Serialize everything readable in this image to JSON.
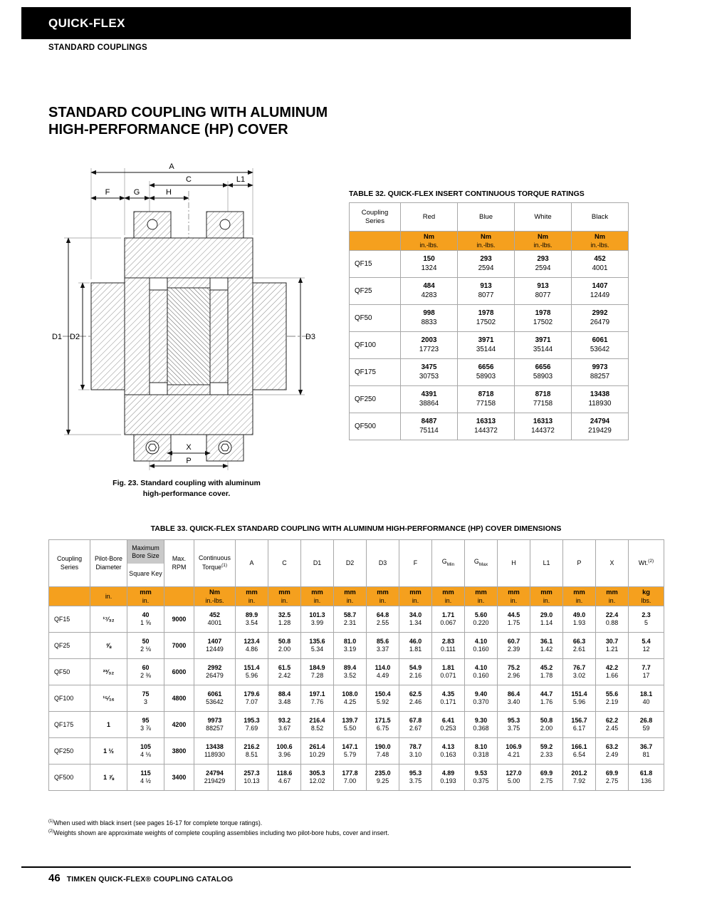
{
  "theme": {
    "accent_orange": "#F5A01E",
    "bore_header_gray": "#C9C9C9",
    "header_bar_black": "#000000"
  },
  "page": {
    "brand": "QUICK-FLEX",
    "section": "STANDARD COUPLINGS",
    "title_line1": "STANDARD COUPLING WITH ALUMINUM",
    "title_line2": "HIGH-PERFORMANCE (HP) COVER",
    "footer_page_number": "46",
    "footer_text": "TIMKEN QUICK-FLEX® COUPLING CATALOG"
  },
  "figure": {
    "caption_line1": "Fig. 23. Standard coupling with aluminum",
    "caption_line2": "high-performance cover.",
    "labels": {
      "a": "A",
      "c": "C",
      "l1": "L1",
      "f": "F",
      "g": "G",
      "h": "H",
      "d1": "D1",
      "d2": "D2",
      "d3": "D3",
      "x": "X",
      "p": "P"
    }
  },
  "table32": {
    "title": "TABLE 32. QUICK-FLEX INSERT CONTINUOUS TORQUE RATINGS",
    "series_header": [
      "Coupling",
      "Series"
    ],
    "colors": [
      "Red",
      "Blue",
      "White",
      "Black"
    ],
    "unit_primary": "Nm",
    "unit_secondary": "in.-lbs.",
    "rows": [
      {
        "series": "QF15",
        "values": [
          [
            "150",
            "1324"
          ],
          [
            "293",
            "2594"
          ],
          [
            "293",
            "2594"
          ],
          [
            "452",
            "4001"
          ]
        ]
      },
      {
        "series": "QF25",
        "values": [
          [
            "484",
            "4283"
          ],
          [
            "913",
            "8077"
          ],
          [
            "913",
            "8077"
          ],
          [
            "1407",
            "12449"
          ]
        ]
      },
      {
        "series": "QF50",
        "values": [
          [
            "998",
            "8833"
          ],
          [
            "1978",
            "17502"
          ],
          [
            "1978",
            "17502"
          ],
          [
            "2992",
            "26479"
          ]
        ]
      },
      {
        "series": "QF100",
        "values": [
          [
            "2003",
            "17723"
          ],
          [
            "3971",
            "35144"
          ],
          [
            "3971",
            "35144"
          ],
          [
            "6061",
            "53642"
          ]
        ]
      },
      {
        "series": "QF175",
        "values": [
          [
            "3475",
            "30753"
          ],
          [
            "6656",
            "58903"
          ],
          [
            "6656",
            "58903"
          ],
          [
            "9973",
            "88257"
          ]
        ]
      },
      {
        "series": "QF250",
        "values": [
          [
            "4391",
            "38864"
          ],
          [
            "8718",
            "77158"
          ],
          [
            "8718",
            "77158"
          ],
          [
            "13438",
            "118930"
          ]
        ]
      },
      {
        "series": "QF500",
        "values": [
          [
            "8487",
            "75114"
          ],
          [
            "16313",
            "144372"
          ],
          [
            "16313",
            "144372"
          ],
          [
            "24794",
            "219429"
          ]
        ]
      }
    ]
  },
  "table33": {
    "title": "TABLE 33. QUICK-FLEX STANDARD COUPLING WITH ALUMINUM HIGH-PERFORMANCE (HP) COVER DIMENSIONS",
    "headers": {
      "series": "Coupling Series",
      "pilot": "Pilot-Bore Diameter",
      "bore_top": "Maximum Bore Size",
      "bore_bottom": "Square Key",
      "rpm": "Max. RPM",
      "torque": "Continuous Torque",
      "torque_note": "(1)",
      "dims": [
        {
          "label": "A"
        },
        {
          "label": "C"
        },
        {
          "label": "D1"
        },
        {
          "label": "D2"
        },
        {
          "label": "D3"
        },
        {
          "label": "F"
        },
        {
          "label": "G",
          "sub": "Min"
        },
        {
          "label": "G",
          "sub": "Max"
        },
        {
          "label": "H"
        },
        {
          "label": "L1"
        },
        {
          "label": "P"
        },
        {
          "label": "X"
        }
      ],
      "wt": "Wt.",
      "wt_note": "(2)"
    },
    "units": {
      "pilot": "in.",
      "bore": [
        "mm",
        "in."
      ],
      "torque": [
        "Nm",
        "in.-lbs."
      ],
      "dim": [
        "mm",
        "in."
      ],
      "wt": [
        "kg",
        "lbs."
      ]
    },
    "rows": [
      {
        "series": "QF15",
        "pilot": "¹⁷⁄₃₂",
        "bore": [
          "40",
          "1 ⅝"
        ],
        "rpm": "9000",
        "torque": [
          "452",
          "4001"
        ],
        "dims": [
          [
            "89.9",
            "3.54"
          ],
          [
            "32.5",
            "1.28"
          ],
          [
            "101.3",
            "3.99"
          ],
          [
            "58.7",
            "2.31"
          ],
          [
            "64.8",
            "2.55"
          ],
          [
            "34.0",
            "1.34"
          ],
          [
            "1.71",
            "0.067"
          ],
          [
            "5.60",
            "0.220"
          ],
          [
            "44.5",
            "1.75"
          ],
          [
            "29.0",
            "1.14"
          ],
          [
            "49.0",
            "1.93"
          ],
          [
            "22.4",
            "0.88"
          ]
        ],
        "wt": [
          "2.3",
          "5"
        ]
      },
      {
        "series": "QF25",
        "pilot": "⅝",
        "bore": [
          "50",
          "2 ⅛"
        ],
        "rpm": "7000",
        "torque": [
          "1407",
          "12449"
        ],
        "dims": [
          [
            "123.4",
            "4.86"
          ],
          [
            "50.8",
            "2.00"
          ],
          [
            "135.6",
            "5.34"
          ],
          [
            "81.0",
            "3.19"
          ],
          [
            "85.6",
            "3.37"
          ],
          [
            "46.0",
            "1.81"
          ],
          [
            "2.83",
            "0.111"
          ],
          [
            "4.10",
            "0.160"
          ],
          [
            "60.7",
            "2.39"
          ],
          [
            "36.1",
            "1.42"
          ],
          [
            "66.3",
            "2.61"
          ],
          [
            "30.7",
            "1.21"
          ]
        ],
        "wt": [
          "5.4",
          "12"
        ]
      },
      {
        "series": "QF50",
        "pilot": "²³⁄₃₂",
        "bore": [
          "60",
          "2 ⅜"
        ],
        "rpm": "6000",
        "torque": [
          "2992",
          "26479"
        ],
        "dims": [
          [
            "151.4",
            "5.96"
          ],
          [
            "61.5",
            "2.42"
          ],
          [
            "184.9",
            "7.28"
          ],
          [
            "89.4",
            "3.52"
          ],
          [
            "114.0",
            "4.49"
          ],
          [
            "54.9",
            "2.16"
          ],
          [
            "1.81",
            "0.071"
          ],
          [
            "4.10",
            "0.160"
          ],
          [
            "75.2",
            "2.96"
          ],
          [
            "45.2",
            "1.78"
          ],
          [
            "76.7",
            "3.02"
          ],
          [
            "42.2",
            "1.66"
          ]
        ],
        "wt": [
          "7.7",
          "17"
        ]
      },
      {
        "series": "QF100",
        "pilot": "¹⁵⁄₁₆",
        "bore": [
          "75",
          "3"
        ],
        "rpm": "4800",
        "torque": [
          "6061",
          "53642"
        ],
        "dims": [
          [
            "179.6",
            "7.07"
          ],
          [
            "88.4",
            "3.48"
          ],
          [
            "197.1",
            "7.76"
          ],
          [
            "108.0",
            "4.25"
          ],
          [
            "150.4",
            "5.92"
          ],
          [
            "62.5",
            "2.46"
          ],
          [
            "4.35",
            "0.171"
          ],
          [
            "9.40",
            "0.370"
          ],
          [
            "86.4",
            "3.40"
          ],
          [
            "44.7",
            "1.76"
          ],
          [
            "151.4",
            "5.96"
          ],
          [
            "55.6",
            "2.19"
          ]
        ],
        "wt": [
          "18.1",
          "40"
        ]
      },
      {
        "series": "QF175",
        "pilot": "1",
        "bore": [
          "95",
          "3 ⅞"
        ],
        "rpm": "4200",
        "torque": [
          "9973",
          "88257"
        ],
        "dims": [
          [
            "195.3",
            "7.69"
          ],
          [
            "93.2",
            "3.67"
          ],
          [
            "216.4",
            "8.52"
          ],
          [
            "139.7",
            "5.50"
          ],
          [
            "171.5",
            "6.75"
          ],
          [
            "67.8",
            "2.67"
          ],
          [
            "6.41",
            "0.253"
          ],
          [
            "9.30",
            "0.368"
          ],
          [
            "95.3",
            "3.75"
          ],
          [
            "50.8",
            "2.00"
          ],
          [
            "156.7",
            "6.17"
          ],
          [
            "62.2",
            "2.45"
          ]
        ],
        "wt": [
          "26.8",
          "59"
        ]
      },
      {
        "series": "QF250",
        "pilot": "1 ½",
        "bore": [
          "105",
          "4 ⅛"
        ],
        "rpm": "3800",
        "torque": [
          "13438",
          "118930"
        ],
        "dims": [
          [
            "216.2",
            "8.51"
          ],
          [
            "100.6",
            "3.96"
          ],
          [
            "261.4",
            "10.29"
          ],
          [
            "147.1",
            "5.79"
          ],
          [
            "190.0",
            "7.48"
          ],
          [
            "78.7",
            "3.10"
          ],
          [
            "4.13",
            "0.163"
          ],
          [
            "8.10",
            "0.318"
          ],
          [
            "106.9",
            "4.21"
          ],
          [
            "59.2",
            "2.33"
          ],
          [
            "166.1",
            "6.54"
          ],
          [
            "63.2",
            "2.49"
          ]
        ],
        "wt": [
          "36.7",
          "81"
        ]
      },
      {
        "series": "QF500",
        "pilot": "1 ⅞",
        "bore": [
          "115",
          "4 ½"
        ],
        "rpm": "3400",
        "torque": [
          "24794",
          "219429"
        ],
        "dims": [
          [
            "257.3",
            "10.13"
          ],
          [
            "118.6",
            "4.67"
          ],
          [
            "305.3",
            "12.02"
          ],
          [
            "177.8",
            "7.00"
          ],
          [
            "235.0",
            "9.25"
          ],
          [
            "95.3",
            "3.75"
          ],
          [
            "4.89",
            "0.193"
          ],
          [
            "9.53",
            "0.375"
          ],
          [
            "127.0",
            "5.00"
          ],
          [
            "69.9",
            "2.75"
          ],
          [
            "201.2",
            "7.92"
          ],
          [
            "69.9",
            "2.75"
          ]
        ],
        "wt": [
          "61.8",
          "136"
        ]
      }
    ]
  },
  "footnotes": [
    {
      "sup": "(1)",
      "text": "When used with black insert (see pages 16-17 for complete torque ratings)."
    },
    {
      "sup": "(2)",
      "text": "Weights shown are approximate weights of complete coupling assemblies including two pilot-bore hubs, cover and insert."
    }
  ]
}
